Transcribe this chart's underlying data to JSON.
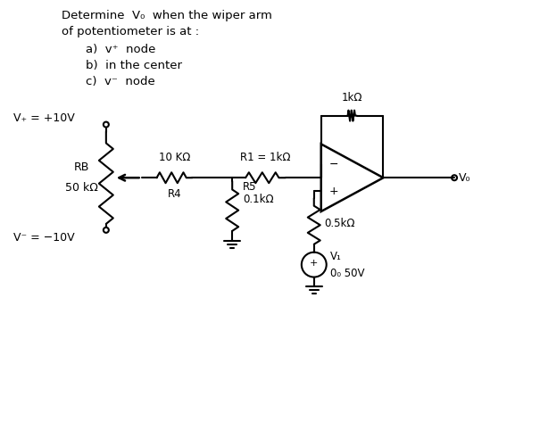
{
  "background_color": "#ffffff",
  "text_color": "#000000",
  "line_color": "#000000",
  "figure_width": 6.05,
  "figure_height": 4.73,
  "dpi": 100,
  "title1": "Determine  V₀  when the wiper arm",
  "title2": "of potentiometer is at :",
  "bullet1": "a)  v⁺  node",
  "bullet2": "b)  in the center",
  "bullet3": "c)  v⁻  node",
  "vplus_label": "V₊ = +10V",
  "vminus_label": "V⁻ = −10V",
  "RB_label": "RB\n50 kΩ",
  "R4_label_top": "10 KΩ",
  "R4_label_bot": "R4",
  "R1_label": "R1 = 1kΩ",
  "R5_label": "R5\n0.1kΩ",
  "Rf_label": "1kΩ",
  "Rbot_label": "0.5kΩ",
  "V1_label": "V₁\n0₀ 50V",
  "Vo_label": "V₀",
  "opamp_minus": "−",
  "opamp_plus": "+"
}
